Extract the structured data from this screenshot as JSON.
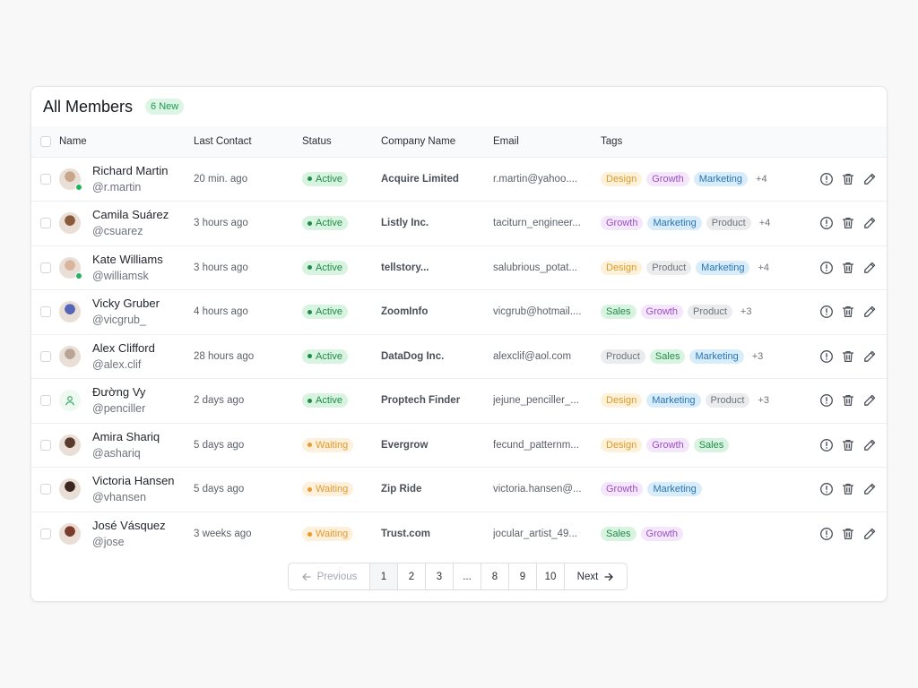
{
  "header": {
    "title": "All Members",
    "badge": "6 New"
  },
  "columns": {
    "name": "Name",
    "last_contact": "Last Contact",
    "status": "Status",
    "company": "Company Name",
    "email": "Email",
    "tags": "Tags"
  },
  "colors": {
    "tag_design_bg": "#fdf1d9",
    "tag_design_fg": "#d99a2a",
    "tag_growth_bg": "#f4e6fb",
    "tag_growth_fg": "#9b4fc4",
    "tag_marketing_bg": "#d8ecf9",
    "tag_marketing_fg": "#2774b5",
    "tag_product_bg": "#ebecee",
    "tag_product_fg": "#6d727a",
    "tag_sales_bg": "#d9f3e1",
    "tag_sales_fg": "#1e8b47"
  },
  "members": [
    {
      "name": "Richard Martin",
      "handle": "@r.martin",
      "last_contact": "20 min. ago",
      "status": "Active",
      "company": "Acquire Limited",
      "email": "r.martin@yahoo....",
      "tags": [
        "Design",
        "Growth",
        "Marketing"
      ],
      "more": "+4",
      "online": true,
      "avatar_color": "#c9a68a"
    },
    {
      "name": "Camila Suárez",
      "handle": "@csuarez",
      "last_contact": "3 hours ago",
      "status": "Active",
      "company": "Listly Inc.",
      "email": "taciturn_engineer...",
      "tags": [
        "Growth",
        "Marketing",
        "Product"
      ],
      "more": "+4",
      "online": false,
      "avatar_color": "#8a5a3c"
    },
    {
      "name": "Kate Williams",
      "handle": "@williamsk",
      "last_contact": "3 hours ago",
      "status": "Active",
      "company": "tellstory...",
      "email": "salubrious_potat...",
      "tags": [
        "Design",
        "Product",
        "Marketing"
      ],
      "more": "+4",
      "online": true,
      "avatar_color": "#d8b59c"
    },
    {
      "name": "Vicky Gruber",
      "handle": "@vicgrub_",
      "last_contact": "4 hours ago",
      "status": "Active",
      "company": "ZoomInfo",
      "email": "vicgrub@hotmail....",
      "tags": [
        "Sales",
        "Growth",
        "Product"
      ],
      "more": "+3",
      "online": false,
      "avatar_color": "#5566b8"
    },
    {
      "name": "Alex Clifford",
      "handle": "@alex.clif",
      "last_contact": "28 hours ago",
      "status": "Active",
      "company": "DataDog Inc.",
      "email": "alexclif@aol.com",
      "tags": [
        "Product",
        "Sales",
        "Marketing"
      ],
      "more": "+3",
      "online": false,
      "avatar_color": "#b7a496"
    },
    {
      "name": "Đường Vy",
      "handle": "@penciller",
      "last_contact": "2 days ago",
      "status": "Active",
      "company": "Proptech Finder",
      "email": "jejune_penciller_...",
      "tags": [
        "Design",
        "Marketing",
        "Product"
      ],
      "more": "+3",
      "online": false,
      "avatar_color": ""
    },
    {
      "name": "Amira Shariq",
      "handle": "@ashariq",
      "last_contact": "5 days ago",
      "status": "Waiting",
      "company": "Evergrow",
      "email": "fecund_patternm...",
      "tags": [
        "Design",
        "Growth",
        "Sales"
      ],
      "more": "",
      "online": false,
      "avatar_color": "#5a3a2c"
    },
    {
      "name": "Victoria Hansen",
      "handle": "@vhansen",
      "last_contact": "5 days ago",
      "status": "Waiting",
      "company": "Zip Ride",
      "email": "victoria.hansen@...",
      "tags": [
        "Growth",
        "Marketing"
      ],
      "more": "",
      "online": false,
      "avatar_color": "#3b2620"
    },
    {
      "name": "José Vásquez",
      "handle": "@jose",
      "last_contact": "3 weeks ago",
      "status": "Waiting",
      "company": "Trust.com",
      "email": "jocular_artist_49...",
      "tags": [
        "Sales",
        "Growth"
      ],
      "more": "",
      "online": false,
      "avatar_color": "#7a3b2a"
    }
  ],
  "pagination": {
    "previous": "Previous",
    "next": "Next",
    "pages": [
      "1",
      "2",
      "3",
      "...",
      "8",
      "9",
      "10"
    ],
    "current": "1"
  }
}
